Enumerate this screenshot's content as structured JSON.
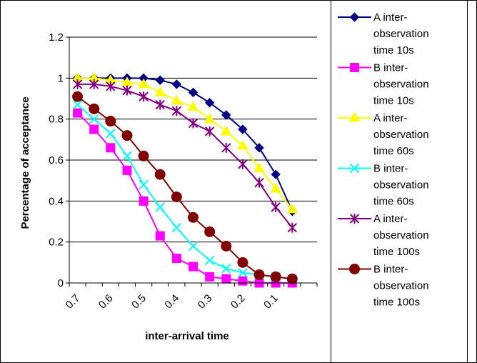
{
  "chart_data": {
    "type": "line",
    "xlabel": "inter-arrival time",
    "ylabel": "Percentage of acceptance",
    "xticks": [
      "0.7",
      "0.6",
      "0.5",
      "0.4",
      "0.3",
      "0.2",
      "0.1"
    ],
    "x": [
      0.7,
      0.65,
      0.6,
      0.55,
      0.5,
      0.45,
      0.4,
      0.35,
      0.3,
      0.25,
      0.2,
      0.15,
      0.1,
      0.05,
      0.01
    ],
    "ylim": [
      0,
      1.2
    ],
    "yticks": [
      "0",
      "0.2",
      "0.4",
      "0.6",
      "0.8",
      "1",
      "1.2"
    ],
    "grid": "horizontal",
    "legend_position": "right",
    "series": [
      {
        "name": "A inter-observation time 10s",
        "color": "#000080",
        "marker": "diamond",
        "values": [
          1.0,
          1.0,
          1.0,
          1.0,
          1.0,
          0.99,
          0.97,
          0.93,
          0.88,
          0.82,
          0.75,
          0.66,
          0.53,
          0.35,
          null
        ]
      },
      {
        "name": "B inter-observation time 10s",
        "color": "#ff00ff",
        "marker": "square",
        "values": [
          0.83,
          0.75,
          0.66,
          0.55,
          0.4,
          0.23,
          0.12,
          0.08,
          0.03,
          0.02,
          0.01,
          0.0,
          0.0,
          0.0,
          null
        ]
      },
      {
        "name": "A inter-observation time 60s",
        "color": "#ffff00",
        "marker": "triangle",
        "values": [
          1.0,
          1.0,
          0.99,
          0.98,
          0.97,
          0.93,
          0.89,
          0.86,
          0.8,
          0.74,
          0.67,
          0.56,
          0.46,
          0.36,
          null
        ]
      },
      {
        "name": "B inter-observation time 60s",
        "color": "#00ffff",
        "marker": "x",
        "values": [
          0.87,
          0.8,
          0.73,
          0.62,
          0.48,
          0.37,
          0.27,
          0.18,
          0.11,
          0.07,
          0.05,
          0.04,
          0.03,
          0.02,
          null
        ]
      },
      {
        "name": "A inter-observation time 100s",
        "color": "#800080",
        "marker": "star",
        "values": [
          0.97,
          0.97,
          0.96,
          0.94,
          0.91,
          0.87,
          0.84,
          0.78,
          0.74,
          0.66,
          0.58,
          0.49,
          0.37,
          0.27,
          null
        ]
      },
      {
        "name": "B inter-observation time 100s",
        "color": "#800000",
        "marker": "circle",
        "values": [
          0.91,
          0.85,
          0.79,
          0.72,
          0.62,
          0.53,
          0.42,
          0.32,
          0.25,
          0.18,
          0.1,
          0.04,
          0.03,
          0.02,
          null
        ]
      }
    ]
  },
  "legend": {
    "entries": [
      {
        "lines": [
          "A inter-",
          "observation",
          "time 10s"
        ]
      },
      {
        "lines": [
          "B inter-",
          "observation",
          "time 10s"
        ]
      },
      {
        "lines": [
          "A inter-",
          "observation",
          "time 60s"
        ]
      },
      {
        "lines": [
          "B inter-",
          "observation",
          "time 60s"
        ]
      },
      {
        "lines": [
          "A inter-",
          "observation",
          "time 100s"
        ]
      },
      {
        "lines": [
          "B inter-",
          "observation",
          "time 100s"
        ]
      }
    ]
  }
}
